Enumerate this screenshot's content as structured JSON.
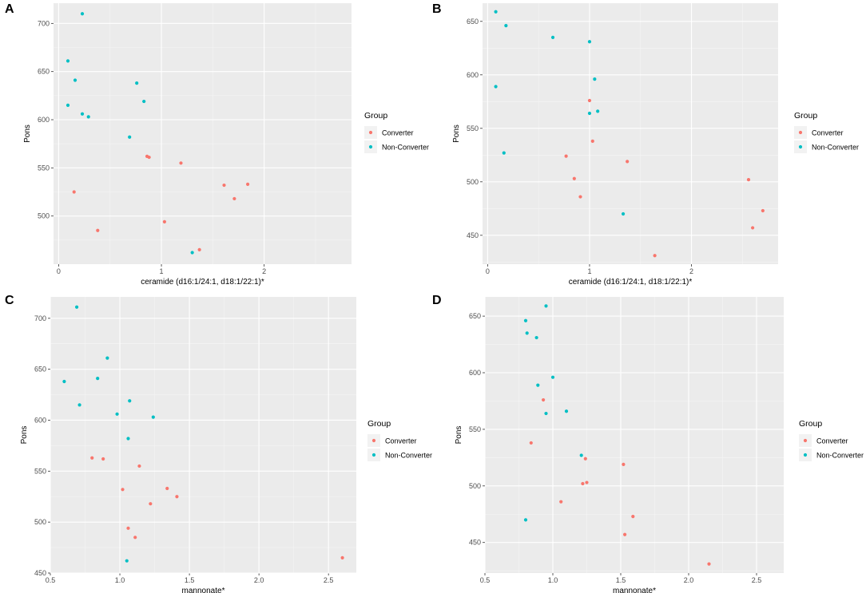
{
  "legend": {
    "title": "Group",
    "entries": [
      {
        "label": "Converter",
        "color": "#F8766D"
      },
      {
        "label": "Non-Converter",
        "color": "#00BFC4"
      }
    ]
  },
  "chart_data": [
    {
      "panel": "A",
      "type": "scatter",
      "xlabel": "ceramide (d16:1/24:1, d18:1/22:1)*",
      "ylabel": "Pons",
      "xlim": [
        -0.05,
        2.85
      ],
      "ylim": [
        450,
        721
      ],
      "xticks": [
        0,
        1,
        2
      ],
      "yticks": [
        500,
        550,
        600,
        650,
        700
      ],
      "series": [
        {
          "name": "Converter",
          "color": "#F8766D",
          "points": [
            [
              0.15,
              525
            ],
            [
              0.38,
              485
            ],
            [
              0.86,
              562
            ],
            [
              0.88,
              561
            ],
            [
              1.03,
              494
            ],
            [
              1.19,
              555
            ],
            [
              1.37,
              465
            ],
            [
              1.61,
              532
            ],
            [
              1.71,
              518
            ],
            [
              1.84,
              533
            ]
          ]
        },
        {
          "name": "Non-Converter",
          "color": "#00BFC4",
          "points": [
            [
              0.09,
              661
            ],
            [
              0.09,
              615
            ],
            [
              0.16,
              641
            ],
            [
              0.23,
              710
            ],
            [
              0.23,
              606
            ],
            [
              0.29,
              603
            ],
            [
              0.69,
              582
            ],
            [
              0.76,
              638
            ],
            [
              0.83,
              619
            ],
            [
              1.3,
              462
            ]
          ]
        }
      ]
    },
    {
      "panel": "B",
      "type": "scatter",
      "xlabel": "ceramide (d16:1/24:1, d18:1/22:1)*",
      "ylabel": "Pons",
      "xlim": [
        -0.05,
        2.85
      ],
      "ylim": [
        423,
        667
      ],
      "xticks": [
        0,
        1,
        2
      ],
      "yticks": [
        450,
        500,
        550,
        600,
        650
      ],
      "series": [
        {
          "name": "Converter",
          "color": "#F8766D",
          "points": [
            [
              0.77,
              524
            ],
            [
              0.85,
              503
            ],
            [
              0.91,
              486
            ],
            [
              1.0,
              576
            ],
            [
              1.03,
              538
            ],
            [
              1.37,
              519
            ],
            [
              1.64,
              431
            ],
            [
              2.56,
              502
            ],
            [
              2.6,
              457
            ],
            [
              2.7,
              473
            ]
          ]
        },
        {
          "name": "Non-Converter",
          "color": "#00BFC4",
          "points": [
            [
              0.08,
              659
            ],
            [
              0.08,
              589
            ],
            [
              0.16,
              527
            ],
            [
              0.18,
              646
            ],
            [
              0.64,
              635
            ],
            [
              1.0,
              631
            ],
            [
              1.0,
              564
            ],
            [
              1.05,
              596
            ],
            [
              1.08,
              566
            ],
            [
              1.33,
              470
            ]
          ]
        }
      ]
    },
    {
      "panel": "C",
      "type": "scatter",
      "xlabel": "mannonate*",
      "ylabel": "Pons",
      "xlim": [
        0.5,
        2.7
      ],
      "ylim": [
        450,
        721
      ],
      "xticks": [
        0.5,
        1.0,
        1.5,
        2.0,
        2.5
      ],
      "yticks": [
        450,
        500,
        550,
        600,
        650,
        700
      ],
      "series": [
        {
          "name": "Converter",
          "color": "#F8766D",
          "points": [
            [
              0.8,
              563
            ],
            [
              0.88,
              562
            ],
            [
              1.02,
              532
            ],
            [
              1.06,
              494
            ],
            [
              1.11,
              485
            ],
            [
              1.14,
              555
            ],
            [
              1.22,
              518
            ],
            [
              1.34,
              533
            ],
            [
              1.41,
              525
            ],
            [
              2.6,
              465
            ]
          ]
        },
        {
          "name": "Non-Converter",
          "color": "#00BFC4",
          "points": [
            [
              0.6,
              638
            ],
            [
              0.69,
              711
            ],
            [
              0.71,
              615
            ],
            [
              0.84,
              641
            ],
            [
              0.91,
              661
            ],
            [
              0.98,
              606
            ],
            [
              1.06,
              582
            ],
            [
              1.07,
              619
            ],
            [
              1.05,
              462
            ],
            [
              1.24,
              603
            ]
          ]
        }
      ]
    },
    {
      "panel": "D",
      "type": "scatter",
      "xlabel": "mannonate*",
      "ylabel": "Pons",
      "xlim": [
        0.5,
        2.7
      ],
      "ylim": [
        423,
        667
      ],
      "xticks": [
        0.5,
        1.0,
        1.5,
        2.0,
        2.5
      ],
      "yticks": [
        450,
        500,
        550,
        600,
        650
      ],
      "series": [
        {
          "name": "Converter",
          "color": "#F8766D",
          "points": [
            [
              0.84,
              538
            ],
            [
              0.93,
              576
            ],
            [
              1.06,
              486
            ],
            [
              1.22,
              502
            ],
            [
              1.24,
              524
            ],
            [
              1.25,
              503
            ],
            [
              1.52,
              519
            ],
            [
              1.53,
              457
            ],
            [
              1.59,
              473
            ],
            [
              2.15,
              431
            ]
          ]
        },
        {
          "name": "Non-Converter",
          "color": "#00BFC4",
          "points": [
            [
              0.8,
              646
            ],
            [
              0.8,
              470
            ],
            [
              0.81,
              635
            ],
            [
              0.88,
              631
            ],
            [
              0.89,
              589
            ],
            [
              0.95,
              659
            ],
            [
              0.95,
              564
            ],
            [
              1.0,
              596
            ],
            [
              1.1,
              566
            ],
            [
              1.21,
              527
            ]
          ]
        }
      ]
    }
  ]
}
